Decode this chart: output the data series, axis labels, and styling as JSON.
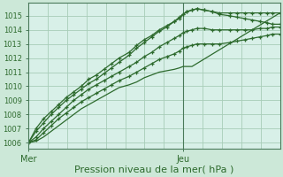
{
  "bg_color": "#cce8d8",
  "plot_bg_color": "#d8f0e8",
  "grid_color": "#a8cdb8",
  "line_color": "#2d6a2d",
  "xlabel": "Pression niveau de la mer( hPa )",
  "xlabel_fontsize": 8,
  "xtick_labels": [
    "Mer",
    "Jeu"
  ],
  "xtick_positions": [
    0,
    0.615
  ],
  "ytick_min": 1006,
  "ytick_max": 1015,
  "xlim": [
    0,
    1.0
  ],
  "ylim": [
    1005.6,
    1015.9
  ],
  "vline_x": 0.615,
  "series": [
    {
      "x": [
        0.0,
        0.03,
        0.06,
        0.09,
        0.12,
        0.15,
        0.18,
        0.21,
        0.24,
        0.27,
        0.3,
        0.33,
        0.36,
        0.4,
        0.43,
        0.46,
        0.49,
        0.52,
        0.55,
        0.58,
        0.6,
        0.615,
        0.63,
        0.65,
        0.67,
        0.7,
        0.73,
        0.76,
        0.8,
        0.83,
        0.86,
        0.89,
        0.92,
        0.95,
        0.97,
        1.0
      ],
      "y": [
        1006.0,
        1006.8,
        1007.4,
        1008.0,
        1008.5,
        1009.0,
        1009.4,
        1009.8,
        1010.2,
        1010.5,
        1010.9,
        1011.3,
        1011.7,
        1012.2,
        1012.7,
        1013.1,
        1013.5,
        1013.9,
        1014.2,
        1014.6,
        1014.9,
        1015.1,
        1015.3,
        1015.4,
        1015.5,
        1015.4,
        1015.3,
        1015.2,
        1015.2,
        1015.2,
        1015.2,
        1015.2,
        1015.2,
        1015.2,
        1015.2,
        1015.2
      ]
    },
    {
      "x": [
        0.0,
        0.03,
        0.06,
        0.09,
        0.12,
        0.15,
        0.18,
        0.21,
        0.24,
        0.27,
        0.3,
        0.33,
        0.36,
        0.4,
        0.43,
        0.46,
        0.49,
        0.52,
        0.55,
        0.58,
        0.6,
        0.615,
        0.63,
        0.65,
        0.67,
        0.7,
        0.73,
        0.76,
        0.8,
        0.83,
        0.86,
        0.89,
        0.92,
        0.95,
        0.97,
        1.0
      ],
      "y": [
        1006.0,
        1007.0,
        1007.7,
        1008.2,
        1008.7,
        1009.2,
        1009.6,
        1010.0,
        1010.5,
        1010.8,
        1011.2,
        1011.6,
        1012.0,
        1012.4,
        1012.9,
        1013.3,
        1013.6,
        1014.0,
        1014.3,
        1014.6,
        1014.8,
        1015.1,
        1015.3,
        1015.4,
        1015.5,
        1015.4,
        1015.3,
        1015.1,
        1015.0,
        1014.9,
        1014.8,
        1014.7,
        1014.6,
        1014.5,
        1014.4,
        1014.4
      ]
    },
    {
      "x": [
        0.0,
        0.03,
        0.06,
        0.09,
        0.12,
        0.15,
        0.18,
        0.21,
        0.24,
        0.27,
        0.3,
        0.33,
        0.36,
        0.4,
        0.43,
        0.46,
        0.49,
        0.52,
        0.55,
        0.58,
        0.6,
        0.615,
        0.63,
        0.65,
        0.67,
        0.7,
        0.73,
        0.76,
        0.8,
        0.83,
        0.86,
        0.89,
        0.92,
        0.95,
        0.97,
        1.0
      ],
      "y": [
        1006.0,
        1006.4,
        1007.0,
        1007.5,
        1008.0,
        1008.5,
        1009.0,
        1009.4,
        1009.8,
        1010.1,
        1010.4,
        1010.7,
        1011.0,
        1011.4,
        1011.7,
        1012.1,
        1012.4,
        1012.8,
        1013.1,
        1013.4,
        1013.6,
        1013.8,
        1013.9,
        1014.0,
        1014.1,
        1014.1,
        1014.0,
        1014.0,
        1014.0,
        1014.0,
        1014.0,
        1014.0,
        1014.1,
        1014.1,
        1014.2,
        1014.2
      ]
    },
    {
      "x": [
        0.0,
        0.03,
        0.06,
        0.09,
        0.12,
        0.15,
        0.18,
        0.21,
        0.24,
        0.27,
        0.3,
        0.33,
        0.36,
        0.4,
        0.43,
        0.46,
        0.49,
        0.52,
        0.55,
        0.58,
        0.6,
        0.615,
        0.63,
        0.65,
        0.67,
        0.7,
        0.73,
        0.76,
        0.8,
        0.83,
        0.86,
        0.89,
        0.92,
        0.95,
        0.97,
        1.0
      ],
      "y": [
        1006.0,
        1006.2,
        1006.7,
        1007.2,
        1007.7,
        1008.1,
        1008.5,
        1008.9,
        1009.2,
        1009.5,
        1009.8,
        1010.1,
        1010.4,
        1010.7,
        1011.0,
        1011.3,
        1011.6,
        1011.9,
        1012.1,
        1012.3,
        1012.5,
        1012.7,
        1012.8,
        1012.9,
        1013.0,
        1013.0,
        1013.0,
        1013.0,
        1013.1,
        1013.2,
        1013.3,
        1013.4,
        1013.5,
        1013.6,
        1013.7,
        1013.7
      ]
    },
    {
      "x": [
        0.0,
        0.03,
        0.06,
        0.09,
        0.12,
        0.15,
        0.18,
        0.21,
        0.24,
        0.27,
        0.3,
        0.33,
        0.36,
        0.4,
        0.43,
        0.46,
        0.49,
        0.52,
        0.55,
        0.58,
        0.6,
        0.615,
        0.63,
        0.65,
        1.0
      ],
      "y": [
        1006.0,
        1006.1,
        1006.4,
        1006.8,
        1007.2,
        1007.6,
        1008.0,
        1008.4,
        1008.7,
        1009.0,
        1009.3,
        1009.6,
        1009.9,
        1010.1,
        1010.3,
        1010.6,
        1010.8,
        1011.0,
        1011.1,
        1011.2,
        1011.3,
        1011.4,
        1011.4,
        1011.4,
        1015.2
      ]
    }
  ]
}
